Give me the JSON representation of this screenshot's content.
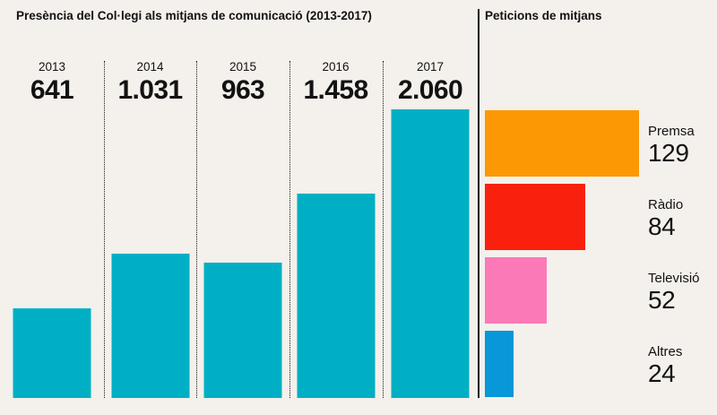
{
  "colors": {
    "background": "#F4F0EB",
    "text": "#121212",
    "divider": "#151515"
  },
  "chart_data": [
    {
      "type": "bar",
      "orientation": "vertical",
      "title": "Presència del Col·legi als mitjans de comunicació (2013-2017)",
      "categories": [
        "2013",
        "2014",
        "2015",
        "2016",
        "2017"
      ],
      "values": [
        641,
        1031,
        963,
        1458,
        2060
      ],
      "value_labels": [
        "641",
        "1.031",
        "963",
        "1.458",
        "2.060"
      ],
      "bar_color": "#00AFC4",
      "ylim": [
        0,
        2060
      ],
      "grid": false,
      "legend": "none"
    },
    {
      "type": "bar",
      "orientation": "horizontal",
      "title": "Peticions de mitjans",
      "categories": [
        "Premsa",
        "Ràdio",
        "Televisió",
        "Altres"
      ],
      "values": [
        129,
        84,
        52,
        24
      ],
      "colors": [
        "#FC9803",
        "#FA200E",
        "#FB79B7",
        "#0897D8"
      ],
      "xlim": [
        0,
        129
      ],
      "grid": false,
      "legend": "none"
    }
  ]
}
